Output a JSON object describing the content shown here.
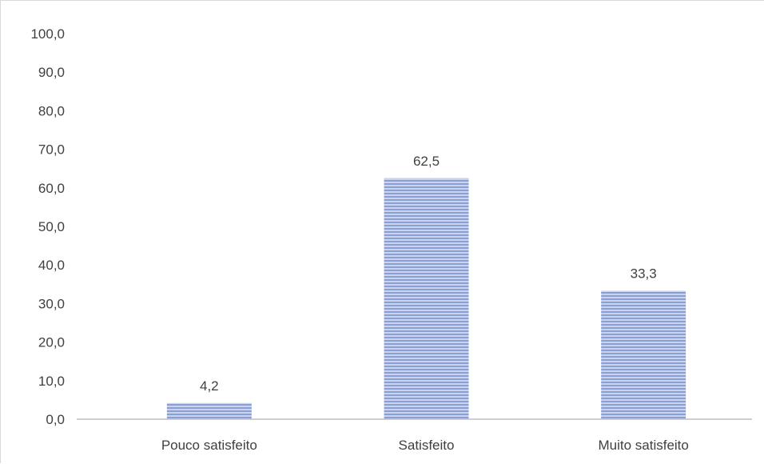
{
  "chart_data": {
    "type": "bar",
    "title": "",
    "xlabel": "",
    "ylabel": "",
    "categories": [
      "Pouco satisfeito",
      "Satisfeito",
      "Muito satisfeito"
    ],
    "values": [
      4.2,
      62.5,
      33.3
    ],
    "value_labels": [
      "4,2",
      "62,5",
      "33,3"
    ],
    "ylim": [
      0,
      100
    ],
    "y_ticks": [
      0,
      10,
      20,
      30,
      40,
      50,
      60,
      70,
      80,
      90,
      100
    ],
    "y_tick_labels": [
      "0,0",
      "10,0",
      "20,0",
      "30,0",
      "40,0",
      "50,0",
      "60,0",
      "70,0",
      "80,0",
      "90,0",
      "100,0"
    ],
    "grid": false,
    "legend": "none",
    "colors": {
      "bar_fill": "#c9d3ee",
      "bar_stripe": "#8a9fd6",
      "axis": "#bfbfbf",
      "text": "#404040"
    }
  }
}
